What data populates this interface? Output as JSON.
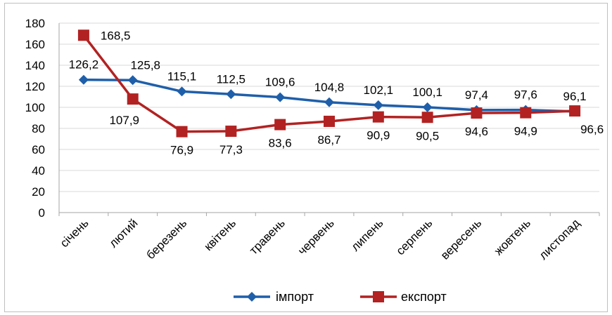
{
  "chart_data": {
    "type": "line",
    "categories": [
      "січень",
      "лютий",
      "березень",
      "квітень",
      "травень",
      "червень",
      "липень",
      "серпень",
      "вересень",
      "жовтень",
      "листопад"
    ],
    "series": [
      {
        "name": "імпорт",
        "values": [
          126.2,
          125.8,
          115.1,
          112.5,
          109.6,
          104.8,
          102.1,
          100.1,
          97.4,
          97.6,
          96.1
        ],
        "labels": [
          "126,2",
          "125,8",
          "115,1",
          "112,5",
          "109,6",
          "104,8",
          "102,1",
          "100,1",
          "97,4",
          "97,6",
          "96,1"
        ],
        "color": "#1f5faa",
        "marker": "diamond"
      },
      {
        "name": "експорт",
        "values": [
          168.5,
          107.9,
          76.9,
          77.3,
          83.6,
          86.7,
          90.9,
          90.5,
          94.6,
          94.9,
          96.6
        ],
        "labels": [
          "168,5",
          "107,9",
          "76,9",
          "77,3",
          "83,6",
          "86,7",
          "90,9",
          "90,5",
          "94,6",
          "94,9",
          "96,6"
        ],
        "color": "#b22222",
        "marker": "square"
      }
    ],
    "yticks": [
      "0",
      "20",
      "40",
      "60",
      "80",
      "100",
      "120",
      "140",
      "160",
      "180"
    ],
    "ylim": [
      0,
      180
    ],
    "grid": true,
    "legend_position": "bottom"
  }
}
